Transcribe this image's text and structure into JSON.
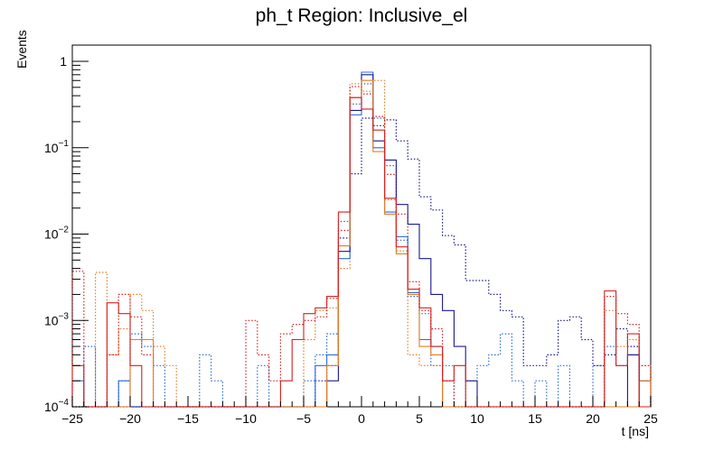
{
  "chart_data": {
    "type": "histogram",
    "title": "ph_t Region: Inclusive_el",
    "xlabel": "t [ns]",
    "ylabel": "Events",
    "xlim": [
      -25,
      25
    ],
    "ylim": [
      0.0001,
      1.6
    ],
    "yscale": "log",
    "bin_width": 1,
    "x_ticks": [
      -25,
      -20,
      -15,
      -10,
      -5,
      0,
      5,
      10,
      15,
      20,
      25
    ],
    "x_tick_labels": [
      "−25",
      "−20",
      "−15",
      "−10",
      "−5",
      "0",
      "5",
      "10",
      "15",
      "20",
      "25"
    ],
    "y_tick_labels": [
      {
        "value": 1,
        "label": "1"
      },
      {
        "value": 0.1,
        "base": "10",
        "exp": "−1"
      },
      {
        "value": 0.01,
        "base": "10",
        "exp": "−2"
      },
      {
        "value": 0.001,
        "base": "10",
        "exp": "−3"
      },
      {
        "value": 0.0001,
        "base": "10",
        "exp": "−4"
      }
    ],
    "series": [
      {
        "name": "dotted blue",
        "color": "#2b6cd6",
        "style": "dotted",
        "bins": [
          [
            -24,
            0.0005
          ],
          [
            -23,
            0.0001
          ],
          [
            -22,
            0.0001
          ],
          [
            -21,
            0.0002
          ],
          [
            -20,
            0.0007
          ],
          [
            -19,
            0.0005
          ],
          [
            -18,
            0.0003
          ],
          [
            -14,
            0.0004
          ],
          [
            -13,
            0.0002
          ],
          [
            -9,
            0.0003
          ],
          [
            -8,
            0.0001
          ],
          [
            -6,
            0.0001
          ],
          [
            -5,
            0.0002
          ],
          [
            -4,
            0.0004
          ],
          [
            -3,
            0.0007
          ],
          [
            -2,
            0.014
          ],
          [
            -1,
            0.32
          ],
          [
            0,
            0.55
          ],
          [
            1,
            0.22
          ],
          [
            2,
            0.062
          ],
          [
            3,
            0.0085
          ],
          [
            4,
            0.0019
          ],
          [
            5,
            0.0012
          ],
          [
            6,
            0.0003
          ],
          [
            7,
            0.0003
          ],
          [
            9,
            0.0002
          ],
          [
            10,
            0.0003
          ],
          [
            11,
            0.0004
          ],
          [
            12,
            0.0007
          ],
          [
            13,
            0.0002
          ],
          [
            14,
            0.0001
          ],
          [
            15,
            0.0002
          ],
          [
            17,
            0.0003
          ],
          [
            19,
            0.0001
          ],
          [
            20,
            0.0003
          ],
          [
            21,
            0.0005
          ],
          [
            22,
            0.0003
          ],
          [
            23,
            0.0004
          ],
          [
            24,
            0.0002
          ]
        ]
      },
      {
        "name": "dotted navy",
        "color": "#1a1a8c",
        "style": "dotted",
        "bins": [
          [
            -24,
            0.0001
          ],
          [
            -23,
            0.0001
          ],
          [
            -6,
            0.0001
          ],
          [
            -4,
            0.0002
          ],
          [
            -3,
            0.0003
          ],
          [
            -2,
            0.009
          ],
          [
            -1,
            0.05
          ],
          [
            0,
            0.22
          ],
          [
            1,
            0.18
          ],
          [
            2,
            0.21
          ],
          [
            3,
            0.12
          ],
          [
            4,
            0.074
          ],
          [
            5,
            0.027
          ],
          [
            6,
            0.019
          ],
          [
            7,
            0.0096
          ],
          [
            8,
            0.0075
          ],
          [
            9,
            0.0029
          ],
          [
            10,
            0.0029
          ],
          [
            11,
            0.002
          ],
          [
            12,
            0.0013
          ],
          [
            13,
            0.0011
          ],
          [
            14,
            0.0003
          ],
          [
            15,
            0.0003
          ],
          [
            16,
            0.0004
          ],
          [
            17,
            0.001
          ],
          [
            18,
            0.0011
          ],
          [
            19,
            0.0006
          ],
          [
            20,
            0.0003
          ],
          [
            21,
            0.0004
          ],
          [
            22,
            0.0008
          ],
          [
            23,
            0.0005
          ],
          [
            24,
            0.0002
          ]
        ]
      },
      {
        "name": "dotted orange",
        "color": "#e67e22",
        "style": "dotted",
        "bins": [
          [
            -24,
            0.0001
          ],
          [
            -23,
            0.0036
          ],
          [
            -22,
            0.0004
          ],
          [
            -21,
            0.0008
          ],
          [
            -20,
            0.002
          ],
          [
            -19,
            0.0013
          ],
          [
            -18,
            0.0005
          ],
          [
            -17,
            0.0003
          ],
          [
            -16,
            0.0001
          ],
          [
            -5,
            0.0006
          ],
          [
            -4,
            0.0013
          ],
          [
            -3,
            0.0014
          ],
          [
            -2,
            0.004
          ],
          [
            -1,
            0.55
          ],
          [
            0,
            0.45
          ],
          [
            1,
            0.6
          ],
          [
            2,
            0.025
          ],
          [
            3,
            0.0064
          ],
          [
            4,
            0.0004
          ],
          [
            5,
            0.0003
          ],
          [
            6,
            0.0003
          ],
          [
            7,
            0.0001
          ],
          [
            8,
            0.0001
          ],
          [
            9,
            0.0001
          ],
          [
            10,
            0.0001
          ],
          [
            20,
            0.0001
          ],
          [
            21,
            0.0013
          ],
          [
            22,
            0.0005
          ],
          [
            23,
            0.0006
          ],
          [
            24,
            0.0003
          ]
        ]
      },
      {
        "name": "dotted red",
        "color": "#d62020",
        "style": "dotted",
        "bins": [
          [
            -25,
            0.0037
          ],
          [
            -24,
            0.0001
          ],
          [
            -22,
            0.0004
          ],
          [
            -21,
            0.002
          ],
          [
            -20,
            0.0011
          ],
          [
            -19,
            0.0004
          ],
          [
            -10,
            0.001
          ],
          [
            -9,
            0.0004
          ],
          [
            -8,
            0.0002
          ],
          [
            -7,
            0.0007
          ],
          [
            -6,
            0.0009
          ],
          [
            -5,
            0.001
          ],
          [
            -4,
            0.0011
          ],
          [
            -3,
            0.0018
          ],
          [
            -2,
            0.011
          ],
          [
            -1,
            0.51
          ],
          [
            0,
            0.42
          ],
          [
            1,
            0.23
          ],
          [
            2,
            0.049
          ],
          [
            3,
            0.017
          ],
          [
            4,
            0.0028
          ],
          [
            5,
            0.0013
          ],
          [
            6,
            0.0008
          ],
          [
            7,
            0.0002
          ],
          [
            8,
            0.0001
          ],
          [
            20,
            0.0001
          ],
          [
            21,
            0.0019
          ],
          [
            22,
            0.0012
          ],
          [
            23,
            0.0009
          ],
          [
            24,
            0.0003
          ]
        ]
      },
      {
        "name": "solid blue",
        "color": "#2b6cd6",
        "style": "solid",
        "bins": [
          [
            -25,
            0.0002
          ],
          [
            -24,
            0.0001
          ],
          [
            -22,
            0.0001
          ],
          [
            -21,
            0.0002
          ],
          [
            -20,
            0.0001
          ],
          [
            -4,
            0.0003
          ],
          [
            -3,
            0.0004
          ],
          [
            -2,
            0.0052
          ],
          [
            -1,
            0.24
          ],
          [
            0,
            0.75
          ],
          [
            1,
            0.1
          ],
          [
            2,
            0.018
          ],
          [
            3,
            0.0093
          ],
          [
            4,
            0.0021
          ],
          [
            5,
            0.0006
          ],
          [
            6,
            0.0005
          ],
          [
            7,
            0.0001
          ],
          [
            8,
            0.0001
          ],
          [
            21,
            0.0001
          ],
          [
            22,
            0.0001
          ],
          [
            23,
            0.0001
          ],
          [
            24,
            0.0002
          ]
        ]
      },
      {
        "name": "solid navy",
        "color": "#1a1a8c",
        "style": "solid",
        "bins": [
          [
            -3,
            0.0002
          ],
          [
            -2,
            0.0063
          ],
          [
            -1,
            0.27
          ],
          [
            0,
            0.7
          ],
          [
            1,
            0.12
          ],
          [
            2,
            0.072
          ],
          [
            3,
            0.022
          ],
          [
            4,
            0.013
          ],
          [
            5,
            0.0052
          ],
          [
            6,
            0.002
          ],
          [
            7,
            0.0013
          ],
          [
            8,
            0.0005
          ],
          [
            9,
            0.0002
          ],
          [
            10,
            0.0001
          ],
          [
            20,
            0.0001
          ],
          [
            21,
            0.0001
          ],
          [
            22,
            0.0001
          ],
          [
            23,
            0.0004
          ],
          [
            24,
            0.0001
          ]
        ]
      },
      {
        "name": "solid orange",
        "color": "#e67e22",
        "style": "solid",
        "bins": [
          [
            -21,
            0.0001
          ],
          [
            -20,
            0.0006
          ],
          [
            -19,
            0.0006
          ],
          [
            -5,
            0.0001
          ],
          [
            -4,
            0.0001
          ],
          [
            -3,
            0.0003
          ],
          [
            -2,
            0.0073
          ],
          [
            -1,
            0.38
          ],
          [
            0,
            0.6
          ],
          [
            1,
            0.09
          ],
          [
            2,
            0.017
          ],
          [
            3,
            0.0059
          ],
          [
            4,
            0.002
          ],
          [
            5,
            0.0005
          ],
          [
            6,
            0.0004
          ],
          [
            7,
            0.0001
          ],
          [
            8,
            0.0001
          ],
          [
            10,
            0.0001
          ],
          [
            21,
            0.0001
          ],
          [
            22,
            0.0001
          ],
          [
            23,
            0.0001
          ],
          [
            24,
            0.0002
          ]
        ]
      },
      {
        "name": "solid red",
        "color": "#d62020",
        "style": "solid",
        "bins": [
          [
            -25,
            0.0003
          ],
          [
            -24,
            0.0001
          ],
          [
            -23,
            0.0001
          ],
          [
            -22,
            0.0016
          ],
          [
            -21,
            0.0012
          ],
          [
            -20,
            0.0003
          ],
          [
            -7,
            0.0002
          ],
          [
            -6,
            0.0006
          ],
          [
            -5,
            0.0012
          ],
          [
            -4,
            0.0014
          ],
          [
            -3,
            0.0019
          ],
          [
            -2,
            0.018
          ],
          [
            -1,
            0.38
          ],
          [
            0,
            0.28
          ],
          [
            1,
            0.16
          ],
          [
            2,
            0.026
          ],
          [
            3,
            0.0071
          ],
          [
            4,
            0.0023
          ],
          [
            5,
            0.0014
          ],
          [
            6,
            0.0005
          ],
          [
            7,
            0.0002
          ],
          [
            8,
            0.0003
          ],
          [
            9,
            0.0001
          ],
          [
            20,
            0.0001
          ],
          [
            21,
            0.0022
          ],
          [
            22,
            0.0003
          ],
          [
            23,
            0.0007
          ],
          [
            24,
            0.0001
          ]
        ]
      }
    ]
  }
}
